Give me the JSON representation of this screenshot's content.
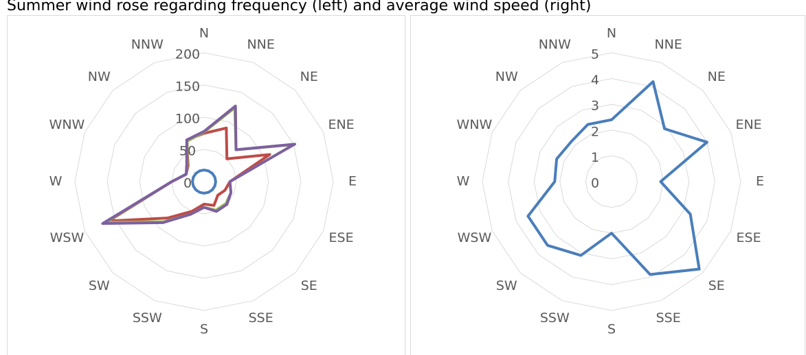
{
  "title": "Summer wind rose regarding frequency (left) and average wind speed (right)",
  "chart_data": [
    {
      "type": "radar",
      "categories": [
        "N",
        "NNE",
        "NE",
        "ENE",
        "E",
        "ESE",
        "SE",
        "SSE",
        "S",
        "SSW",
        "SW",
        "WSW",
        "W",
        "WNW",
        "NW",
        "NNW"
      ],
      "ylim": [
        0,
        200
      ],
      "yticks": [
        0,
        50,
        100,
        150,
        200
      ],
      "grid": true,
      "series": [
        {
          "color": "#4a7ebb",
          "values": [
            18,
            18,
            18,
            18,
            18,
            18,
            18,
            18,
            18,
            18,
            18,
            18,
            18,
            18,
            18,
            18
          ]
        },
        {
          "color": "#be4b48",
          "values": [
            75,
            90,
            50,
            110,
            40,
            35,
            30,
            40,
            35,
            50,
            80,
            160,
            50,
            30,
            35,
            70
          ]
        },
        {
          "color": "#98b954",
          "values": [
            77,
            124,
            70,
            150,
            40,
            45,
            48,
            48,
            40,
            55,
            88,
            165,
            50,
            30,
            37,
            68
          ]
        },
        {
          "color": "#7d60a0",
          "values": [
            78,
            127,
            70,
            152,
            40,
            45,
            50,
            50,
            40,
            55,
            90,
            170,
            50,
            30,
            38,
            70
          ]
        }
      ]
    },
    {
      "type": "radar",
      "categories": [
        "N",
        "NNE",
        "NE",
        "ENE",
        "E",
        "ESE",
        "SE",
        "SSE",
        "S",
        "SSW",
        "SW",
        "WSW",
        "W",
        "WNW",
        "NW",
        "NNW"
      ],
      "ylim": [
        0,
        5
      ],
      "yticks": [
        0,
        1,
        2,
        3,
        4,
        5
      ],
      "grid": true,
      "series": [
        {
          "color": "#4a7ebb",
          "values": [
            2.4,
            4.2,
            2.9,
            4.0,
            1.9,
            3.3,
            4.8,
            3.9,
            2.0,
            3.1,
            3.5,
            3.5,
            2.2,
            2.3,
            2.2,
            2.4
          ]
        }
      ]
    }
  ]
}
